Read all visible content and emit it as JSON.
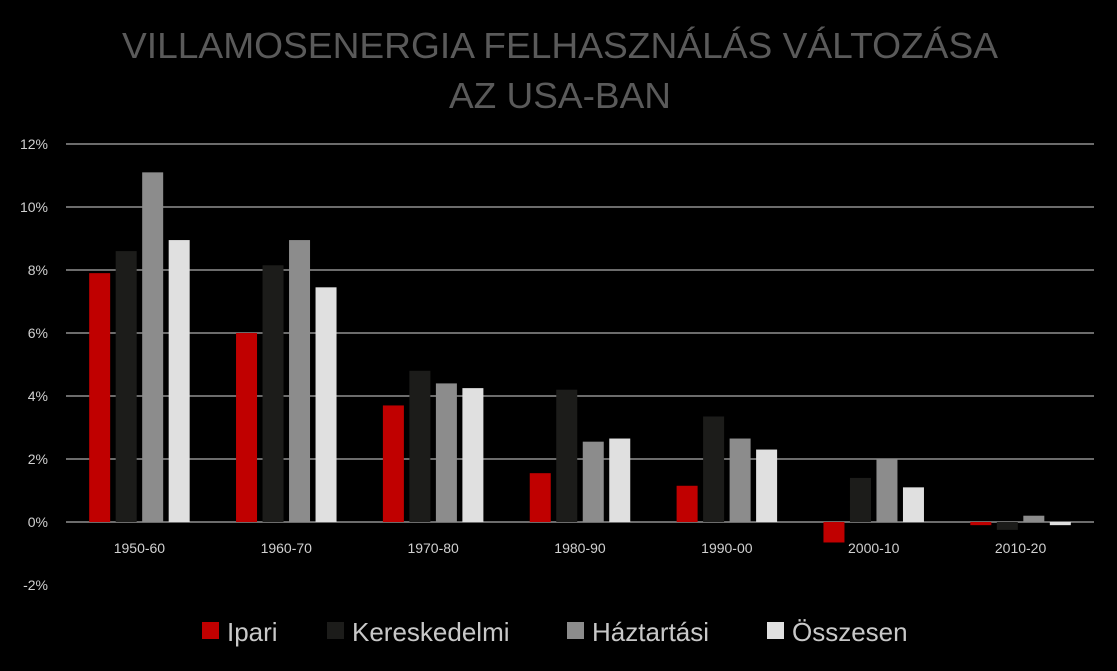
{
  "chart_data": {
    "type": "bar",
    "title": "VILLAMOSENERGIA FELHASZNÁLÁS VÁLTOZÁSA",
    "subtitle": "AZ USA-BAN",
    "xlabel": "",
    "ylabel": "",
    "categories": [
      "1950-60",
      "1960-70",
      "1970-80",
      "1980-90",
      "1990-00",
      "2000-10",
      "2010-20"
    ],
    "series": [
      {
        "name": "Ipari",
        "color": "#c00000",
        "values": [
          7.9,
          6.0,
          3.7,
          1.55,
          1.15,
          -0.65,
          -0.1
        ]
      },
      {
        "name": "Kereskedelmi",
        "color": "#1c1c1a",
        "values": [
          8.6,
          8.15,
          4.8,
          4.2,
          3.35,
          1.4,
          -0.25
        ]
      },
      {
        "name": "Háztartási",
        "color": "#8c8c8c",
        "values": [
          11.1,
          8.95,
          4.4,
          2.55,
          2.65,
          2.0,
          0.2
        ]
      },
      {
        "name": "Összesen",
        "color": "#e0e0e0",
        "values": [
          8.95,
          7.45,
          4.25,
          2.65,
          2.3,
          1.1,
          -0.1
        ]
      }
    ],
    "ylim": [
      -2,
      12
    ],
    "yticks": [
      {
        "value": -2,
        "label": "-2%"
      },
      {
        "value": 0,
        "label": "0%"
      },
      {
        "value": 2,
        "label": "2%"
      },
      {
        "value": 4,
        "label": "4%"
      },
      {
        "value": 6,
        "label": "6%"
      },
      {
        "value": 8,
        "label": "8%"
      },
      {
        "value": 10,
        "label": "10%"
      },
      {
        "value": 12,
        "label": "12%"
      }
    ],
    "grid": true,
    "legend": "bottom",
    "colors": {
      "background": "#000000",
      "gridline": "#d9d9d9",
      "title": "#5a5a5a",
      "ticks": "#d0d0d0"
    }
  }
}
